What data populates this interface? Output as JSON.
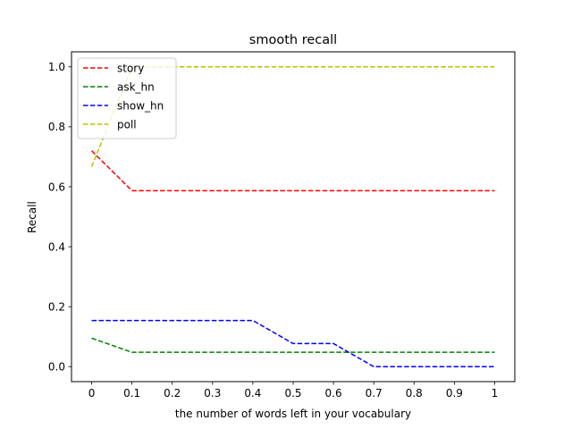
{
  "chart_data": {
    "type": "line",
    "title": "smooth recall",
    "xlabel": "the number of words left in your vocabulary",
    "ylabel": "Recall",
    "xlim": [
      -0.05,
      1.05
    ],
    "ylim": [
      -0.05,
      1.05
    ],
    "x_ticks": [
      0,
      0.1,
      0.2,
      0.3,
      0.4,
      0.5,
      0.6,
      0.7,
      0.8,
      0.9,
      1
    ],
    "x_tick_labels": [
      "0",
      "0.1",
      "0.2",
      "0.3",
      "0.4",
      "0.5",
      "0.6",
      "0.7",
      "0.8",
      "0.9",
      "1"
    ],
    "y_ticks": [
      0,
      0.2,
      0.4,
      0.6,
      0.8,
      1.0
    ],
    "y_tick_labels": [
      "0.0",
      "0.2",
      "0.4",
      "0.6",
      "0.8",
      "1.0"
    ],
    "grid": false,
    "legend_position": "top-left",
    "line_style": "dashed",
    "x": [
      0,
      0.1,
      0.2,
      0.3,
      0.4,
      0.5,
      0.6,
      0.7,
      0.8,
      0.9,
      1
    ],
    "series": [
      {
        "name": "story",
        "color": "#ff0000",
        "values": [
          0.72,
          0.587,
          0.587,
          0.587,
          0.587,
          0.587,
          0.587,
          0.587,
          0.587,
          0.587,
          0.587
        ]
      },
      {
        "name": "ask_hn",
        "color": "#008000",
        "values": [
          0.095,
          0.048,
          0.048,
          0.048,
          0.048,
          0.048,
          0.048,
          0.048,
          0.048,
          0.048,
          0.048
        ]
      },
      {
        "name": "show_hn",
        "color": "#0000ff",
        "values": [
          0.154,
          0.154,
          0.154,
          0.154,
          0.154,
          0.077,
          0.077,
          0.0,
          0.0,
          0.0,
          0.0
        ]
      },
      {
        "name": "poll",
        "color": "#bfbf00",
        "values": [
          0.667,
          1.0,
          1.0,
          1.0,
          1.0,
          1.0,
          1.0,
          1.0,
          1.0,
          1.0,
          1.0
        ]
      }
    ]
  }
}
